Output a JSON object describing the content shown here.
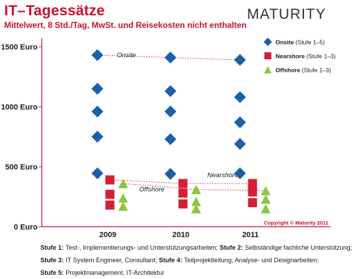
{
  "header": {
    "title": "IT–Tagessätze",
    "subtitle": "Mittelwert, 8 Std./Tag, MwSt. und Reisekosten nicht enthalten",
    "logo_text": "MATURITY"
  },
  "colors": {
    "title": "#c8102e",
    "onsite": "#1a5fa8",
    "nearshore": "#d41f37",
    "offshore": "#8dc63f",
    "axis": "#c8102e",
    "guide": "#c8102e"
  },
  "copyright": "Copyright © Maturity 2011",
  "chart_data": {
    "type": "scatter",
    "title": "IT–Tagessätze",
    "subtitle": "Mittelwert, 8 Std./Tag, MwSt. und Reisekosten nicht enthalten",
    "x": [
      "2009",
      "2010",
      "2011"
    ],
    "ylim": [
      0,
      1650
    ],
    "yticks": [
      0,
      500,
      1000,
      1500
    ],
    "ytick_labels": [
      "0 Euro",
      "500 Euro",
      "1000 Euro",
      "1500 Euro"
    ],
    "legend_position": "top-right",
    "grid": false,
    "series": [
      {
        "name": "Onsite",
        "name_suffix": "(Stufe 1–5)",
        "marker": "diamond",
        "values": [
          [
            445,
            750,
            960,
            1150,
            1430
          ],
          [
            440,
            730,
            960,
            1130,
            1410
          ],
          [
            445,
            690,
            870,
            1080,
            1390
          ]
        ]
      },
      {
        "name": "Nearshore",
        "name_suffix": "(Stufe 1–3)",
        "marker": "square",
        "values": [
          [
            180,
            270,
            390
          ],
          [
            190,
            280,
            360
          ],
          [
            200,
            290,
            360
          ]
        ]
      },
      {
        "name": "Offshore",
        "name_suffix": "(Stufe 1–3)",
        "marker": "triangle",
        "values": [
          [
            170,
            240,
            360
          ],
          [
            150,
            210,
            310
          ],
          [
            150,
            230,
            300
          ]
        ]
      }
    ],
    "trend_lines": [
      {
        "label": "Onsite",
        "values": [
          1430,
          1410,
          1390
        ]
      },
      {
        "label": "Nearshore",
        "values": [
          390,
          360,
          360
        ]
      },
      {
        "label": "Offshore",
        "values": [
          360,
          310,
          300
        ]
      }
    ]
  },
  "footnotes": [
    [
      {
        "b": "Stufe 1:"
      },
      {
        "t": " Test-, Implementierungs- und Unterstützungsarbeiten; "
      },
      {
        "b": "Stufe 2:"
      },
      {
        "t": " Selbständige fachliche Unterstützung;"
      }
    ],
    [
      {
        "b": "Stufe 3:"
      },
      {
        "t": " IT System Engineer, Consultant; "
      },
      {
        "b": "Stufe 4:"
      },
      {
        "t": " Teilprojektleitung, Analyse- und Designarbeiten;"
      }
    ],
    [
      {
        "b": "Stufe 5:"
      },
      {
        "t": " Projektmanagement, IT-Architektur"
      }
    ]
  ]
}
